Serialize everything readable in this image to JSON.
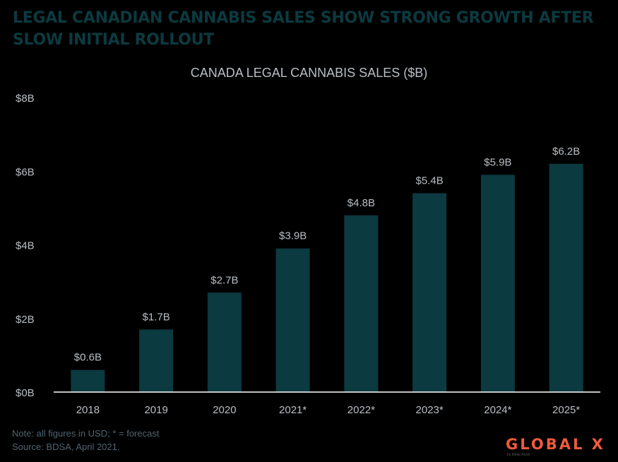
{
  "header": {
    "headline": "LEGAL CANADIAN CANNABIS SALES SHOW STRONG GROWTH AFTER SLOW INITIAL ROLLOUT"
  },
  "colors": {
    "bar": "#0b3a40",
    "text": "#b9bec4",
    "axis": "#ffffff",
    "headline": "#0b3a40",
    "brand": "#ef5a3c"
  },
  "chart_data": {
    "type": "bar",
    "title": "CANADA LEGAL CANNABIS SALES ($B)",
    "categories": [
      "2018",
      "2019",
      "2020",
      "2021*",
      "2022*",
      "2023*",
      "2024*",
      "2025*"
    ],
    "values": [
      0.6,
      1.7,
      2.7,
      3.9,
      4.8,
      5.4,
      5.9,
      6.2
    ],
    "data_labels": [
      "$0.6B",
      "$1.7B",
      "$2.7B",
      "$3.9B",
      "$4.8B",
      "$5.4B",
      "$5.9B",
      "$6.2B"
    ],
    "y_ticks": [
      0,
      2,
      4,
      6,
      8
    ],
    "y_tick_labels": [
      "$0B",
      "$2B",
      "$4B",
      "$6B",
      "$8B"
    ],
    "ylim": [
      0,
      8
    ],
    "xlabel": "",
    "ylabel": "",
    "grid": false,
    "legend": "none"
  },
  "footnotes": {
    "note": "Note: all figures in USD; * = forecast",
    "source": "Source: BDSA, April 2021."
  },
  "logo": {
    "name": "GLOBAL X",
    "tagline": "by Mirae Asset"
  }
}
